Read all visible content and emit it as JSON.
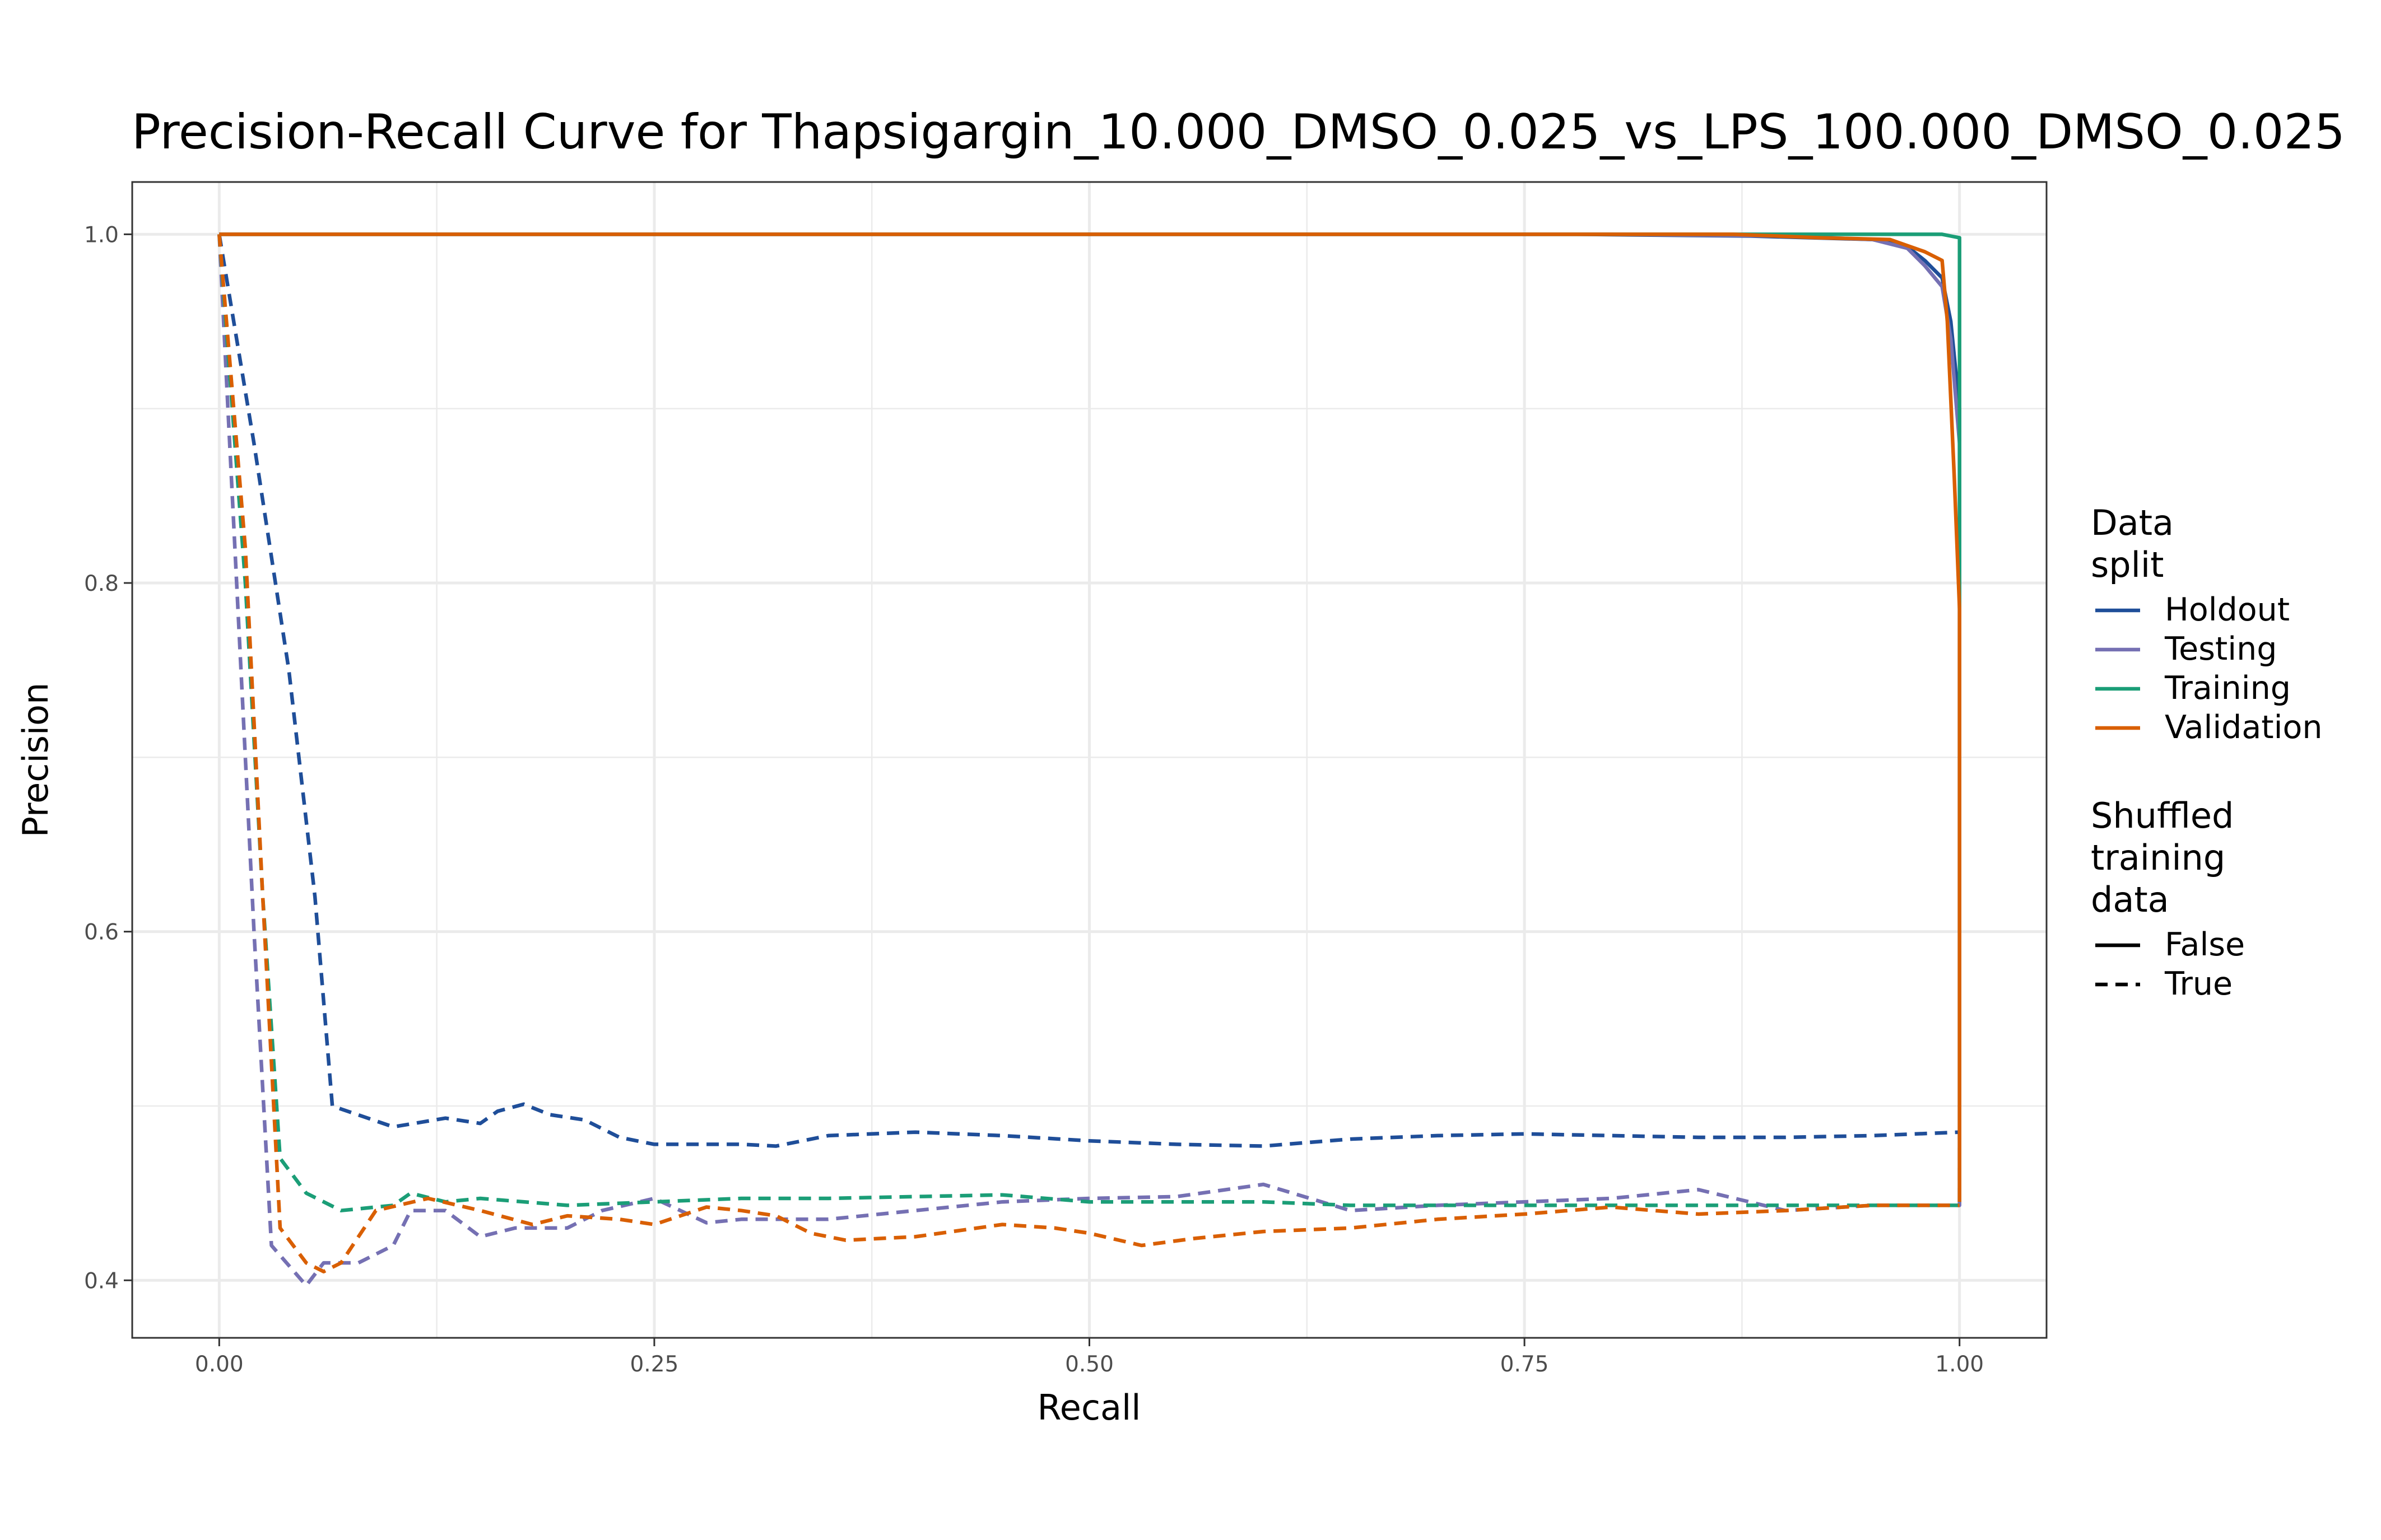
{
  "chart_data": {
    "type": "line",
    "title": "Precision-Recall Curve for Thapsigargin_10.000_DMSO_0.025_vs_LPS_100.000_DMSO_0.025",
    "xlabel": "Recall",
    "ylabel": "Precision",
    "xlim": [
      -0.05,
      1.05
    ],
    "ylim": [
      0.367,
      1.03
    ],
    "x_ticks": [
      0.0,
      0.25,
      0.5,
      0.75,
      1.0
    ],
    "x_tick_labels": [
      "0.00",
      "0.25",
      "0.50",
      "0.75",
      "1.00"
    ],
    "y_ticks": [
      0.4,
      0.6,
      0.8,
      1.0
    ],
    "y_tick_labels": [
      "0.4",
      "0.6",
      "0.8",
      "1.0"
    ],
    "grid": true,
    "legend_placement": "right",
    "legends": [
      {
        "title": "Data\nsplit",
        "entries": [
          {
            "label": "Holdout",
            "color": "#1f4e99"
          },
          {
            "label": "Testing",
            "color": "#7570b3"
          },
          {
            "label": "Training",
            "color": "#1b9e77"
          },
          {
            "label": "Validation",
            "color": "#d95f02"
          }
        ]
      },
      {
        "title": "Shuffled\ntraining\ndata",
        "entries": [
          {
            "label": "False",
            "linetype": "solid"
          },
          {
            "label": "True",
            "linetype": "dashed"
          }
        ]
      }
    ],
    "series": [
      {
        "split": "Holdout",
        "shuffled": "False",
        "color": "#1f4e99",
        "points": [
          [
            0,
            1.0
          ],
          [
            0,
            1.0
          ],
          [
            0.78,
            1.0
          ],
          [
            0.88,
            0.999
          ],
          [
            0.95,
            0.997
          ],
          [
            0.97,
            0.993
          ],
          [
            0.98,
            0.985
          ],
          [
            0.99,
            0.975
          ],
          [
            0.995,
            0.95
          ],
          [
            1.0,
            0.9
          ],
          [
            1.0,
            0.445
          ]
        ]
      },
      {
        "split": "Testing",
        "shuffled": "False",
        "color": "#7570b3",
        "points": [
          [
            0,
            1.0
          ],
          [
            0,
            1.0
          ],
          [
            0.8,
            1.0
          ],
          [
            0.9,
            0.999
          ],
          [
            0.95,
            0.997
          ],
          [
            0.97,
            0.992
          ],
          [
            0.98,
            0.982
          ],
          [
            0.99,
            0.97
          ],
          [
            0.995,
            0.94
          ],
          [
            1.0,
            0.88
          ],
          [
            1.0,
            0.445
          ]
        ]
      },
      {
        "split": "Training",
        "shuffled": "False",
        "color": "#1b9e77",
        "points": [
          [
            0,
            1.0
          ],
          [
            0,
            1.0
          ],
          [
            0.99,
            1.0
          ],
          [
            0.995,
            0.999
          ],
          [
            1.0,
            0.998
          ],
          [
            1.0,
            0.78
          ],
          [
            1.0,
            0.445
          ]
        ]
      },
      {
        "split": "Validation",
        "shuffled": "False",
        "color": "#d95f02",
        "points": [
          [
            0,
            1.0
          ],
          [
            0,
            1.0
          ],
          [
            0.87,
            1.0
          ],
          [
            0.92,
            0.998
          ],
          [
            0.96,
            0.997
          ],
          [
            0.98,
            0.99
          ],
          [
            0.99,
            0.985
          ],
          [
            0.993,
            0.95
          ],
          [
            0.997,
            0.86
          ],
          [
            1.0,
            0.785
          ],
          [
            1.0,
            0.445
          ]
        ]
      },
      {
        "split": "Holdout",
        "shuffled": "True",
        "color": "#1f4e99",
        "points": [
          [
            0,
            1.0
          ],
          [
            0.02,
            0.88
          ],
          [
            0.04,
            0.75
          ],
          [
            0.055,
            0.62
          ],
          [
            0.065,
            0.5
          ],
          [
            0.1,
            0.488
          ],
          [
            0.13,
            0.493
          ],
          [
            0.15,
            0.49
          ],
          [
            0.16,
            0.497
          ],
          [
            0.175,
            0.501
          ],
          [
            0.19,
            0.495
          ],
          [
            0.21,
            0.492
          ],
          [
            0.23,
            0.482
          ],
          [
            0.25,
            0.478
          ],
          [
            0.3,
            0.478
          ],
          [
            0.32,
            0.477
          ],
          [
            0.35,
            0.483
          ],
          [
            0.4,
            0.485
          ],
          [
            0.45,
            0.483
          ],
          [
            0.5,
            0.48
          ],
          [
            0.55,
            0.478
          ],
          [
            0.6,
            0.477
          ],
          [
            0.65,
            0.481
          ],
          [
            0.7,
            0.483
          ],
          [
            0.75,
            0.484
          ],
          [
            0.8,
            0.483
          ],
          [
            0.85,
            0.482
          ],
          [
            0.9,
            0.482
          ],
          [
            0.95,
            0.483
          ],
          [
            1.0,
            0.485
          ],
          [
            1.0,
            0.445
          ]
        ]
      },
      {
        "split": "Testing",
        "shuffled": "True",
        "color": "#7570b3",
        "points": [
          [
            0,
            1.0
          ],
          [
            0.01,
            0.8
          ],
          [
            0.02,
            0.6
          ],
          [
            0.03,
            0.42
          ],
          [
            0.05,
            0.397
          ],
          [
            0.06,
            0.41
          ],
          [
            0.08,
            0.41
          ],
          [
            0.1,
            0.42
          ],
          [
            0.11,
            0.44
          ],
          [
            0.13,
            0.44
          ],
          [
            0.15,
            0.425
          ],
          [
            0.17,
            0.43
          ],
          [
            0.2,
            0.43
          ],
          [
            0.22,
            0.44
          ],
          [
            0.25,
            0.447
          ],
          [
            0.28,
            0.433
          ],
          [
            0.3,
            0.435
          ],
          [
            0.35,
            0.435
          ],
          [
            0.4,
            0.44
          ],
          [
            0.45,
            0.445
          ],
          [
            0.5,
            0.447
          ],
          [
            0.55,
            0.448
          ],
          [
            0.6,
            0.455
          ],
          [
            0.65,
            0.44
          ],
          [
            0.7,
            0.443
          ],
          [
            0.75,
            0.445
          ],
          [
            0.8,
            0.447
          ],
          [
            0.85,
            0.452
          ],
          [
            0.9,
            0.44
          ],
          [
            0.95,
            0.443
          ],
          [
            1.0,
            0.443
          ],
          [
            1.0,
            0.445
          ]
        ]
      },
      {
        "split": "Training",
        "shuffled": "True",
        "color": "#1b9e77",
        "points": [
          [
            0,
            1.0
          ],
          [
            0.015,
            0.8
          ],
          [
            0.025,
            0.62
          ],
          [
            0.035,
            0.47
          ],
          [
            0.05,
            0.45
          ],
          [
            0.07,
            0.44
          ],
          [
            0.1,
            0.443
          ],
          [
            0.11,
            0.45
          ],
          [
            0.13,
            0.445
          ],
          [
            0.15,
            0.447
          ],
          [
            0.2,
            0.443
          ],
          [
            0.25,
            0.445
          ],
          [
            0.3,
            0.447
          ],
          [
            0.35,
            0.447
          ],
          [
            0.4,
            0.448
          ],
          [
            0.45,
            0.449
          ],
          [
            0.5,
            0.445
          ],
          [
            0.55,
            0.445
          ],
          [
            0.6,
            0.445
          ],
          [
            0.65,
            0.443
          ],
          [
            0.7,
            0.443
          ],
          [
            0.75,
            0.443
          ],
          [
            0.8,
            0.443
          ],
          [
            0.85,
            0.443
          ],
          [
            0.9,
            0.443
          ],
          [
            0.95,
            0.443
          ],
          [
            1.0,
            0.443
          ]
        ]
      },
      {
        "split": "Validation",
        "shuffled": "True",
        "color": "#d95f02",
        "points": [
          [
            0,
            1.0
          ],
          [
            0.015,
            0.82
          ],
          [
            0.025,
            0.62
          ],
          [
            0.035,
            0.43
          ],
          [
            0.05,
            0.41
          ],
          [
            0.06,
            0.405
          ],
          [
            0.07,
            0.41
          ],
          [
            0.09,
            0.44
          ],
          [
            0.12,
            0.447
          ],
          [
            0.15,
            0.44
          ],
          [
            0.18,
            0.432
          ],
          [
            0.2,
            0.437
          ],
          [
            0.23,
            0.435
          ],
          [
            0.25,
            0.432
          ],
          [
            0.28,
            0.442
          ],
          [
            0.3,
            0.44
          ],
          [
            0.32,
            0.437
          ],
          [
            0.34,
            0.427
          ],
          [
            0.36,
            0.423
          ],
          [
            0.4,
            0.425
          ],
          [
            0.45,
            0.432
          ],
          [
            0.48,
            0.43
          ],
          [
            0.5,
            0.427
          ],
          [
            0.53,
            0.42
          ],
          [
            0.56,
            0.424
          ],
          [
            0.6,
            0.428
          ],
          [
            0.65,
            0.43
          ],
          [
            0.7,
            0.435
          ],
          [
            0.75,
            0.438
          ],
          [
            0.8,
            0.442
          ],
          [
            0.85,
            0.438
          ],
          [
            0.9,
            0.44
          ],
          [
            0.95,
            0.443
          ],
          [
            1.0,
            0.443
          ]
        ]
      }
    ]
  }
}
